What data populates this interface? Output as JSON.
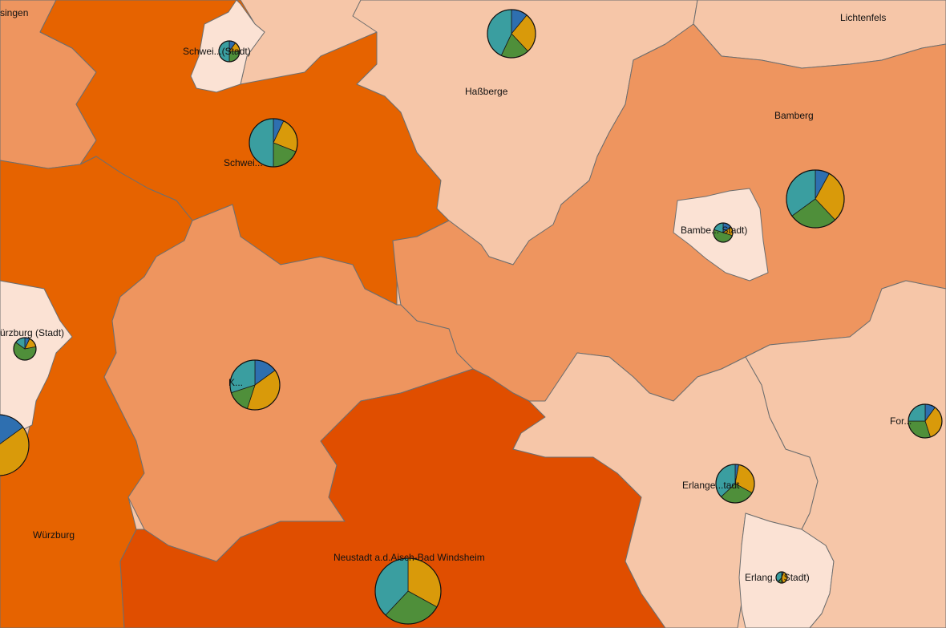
{
  "colors": {
    "class1": "#fbe2d4",
    "class2": "#f6c6a8",
    "class3": "#ee955f",
    "class4": "#e66300",
    "class5": "#e04e00",
    "pie": [
      "#2e6fb0",
      "#d99a0a",
      "#4f8f3a",
      "#3a9ea0"
    ]
  },
  "regions": [
    {
      "id": "schweinfurt-stadt",
      "label": "Schweinfurt (Stadt)",
      "class": 1,
      "pie": [
        0.1,
        0.15,
        0.25,
        0.5
      ]
    },
    {
      "id": "schweinfurt",
      "label": "Schweinfurt",
      "class": 4,
      "pie": [
        0.07,
        0.24,
        0.19,
        0.5
      ]
    },
    {
      "id": "hassberge",
      "label": "Haßberge",
      "class": 2,
      "pie": [
        0.11,
        0.27,
        0.19,
        0.43
      ]
    },
    {
      "id": "lichtenfels",
      "label": "Lichtenfels",
      "class": 2
    },
    {
      "id": "bamberg",
      "label": "Bamberg",
      "class": 3,
      "pie": [
        0.08,
        0.3,
        0.27,
        0.35
      ]
    },
    {
      "id": "bamberg-stadt",
      "label": "Bamberg (Stadt)",
      "class": 1,
      "pie": [
        0.15,
        0.15,
        0.5,
        0.2
      ]
    },
    {
      "id": "wuerzburg-stadt",
      "label": "Würzburg (Stadt)",
      "class": 1,
      "pie": [
        0.07,
        0.15,
        0.63,
        0.15
      ]
    },
    {
      "id": "wuerzburg",
      "label": "Würzburg",
      "class": 4,
      "pie": [
        0.15,
        0.45,
        0.2,
        0.2
      ]
    },
    {
      "id": "kitzingen",
      "label": "Kitzingen",
      "class": 3,
      "pie": [
        0.15,
        0.4,
        0.15,
        0.3
      ]
    },
    {
      "id": "neustadt",
      "label": "Neustadt a.d.Aisch-Bad Windsheim",
      "class": 5,
      "pie": [
        0.0,
        0.33,
        0.29,
        0.38
      ]
    },
    {
      "id": "erlangen-hoechstadt",
      "label": "Erlangen-Höchstadt",
      "class": 2,
      "pie": [
        0.03,
        0.3,
        0.3,
        0.37
      ]
    },
    {
      "id": "erlangen-stadt",
      "label": "Erlangen (Stadt)",
      "class": 1,
      "pie": [
        0.05,
        0.45,
        0.1,
        0.4
      ]
    },
    {
      "id": "forchheim",
      "label": "Forchheim",
      "class": 2,
      "pie": [
        0.1,
        0.35,
        0.3,
        0.25
      ]
    }
  ],
  "labels": {
    "top_left": "singen",
    "schweinfurt_stadt": "Schwei...(Stadt)",
    "schweinfurt": "Schwei...",
    "hassberge": "Haßberge",
    "lichtenfels": "Lichtenfels",
    "bamberg": "Bamberg",
    "bamberg_stadt": "Bambe... Stadt)",
    "wuerzburg_stadt": "ürzburg (Stadt)",
    "wuerzburg": "Würzburg",
    "kitzingen": "K...",
    "neustadt": "Neustadt a.d.Aisch-Bad Windsheim",
    "erlangen_hoechstadt": "Erlange...tadt",
    "erlangen_stadt": "Erlang...(Stadt)",
    "forchheim": "For..."
  }
}
